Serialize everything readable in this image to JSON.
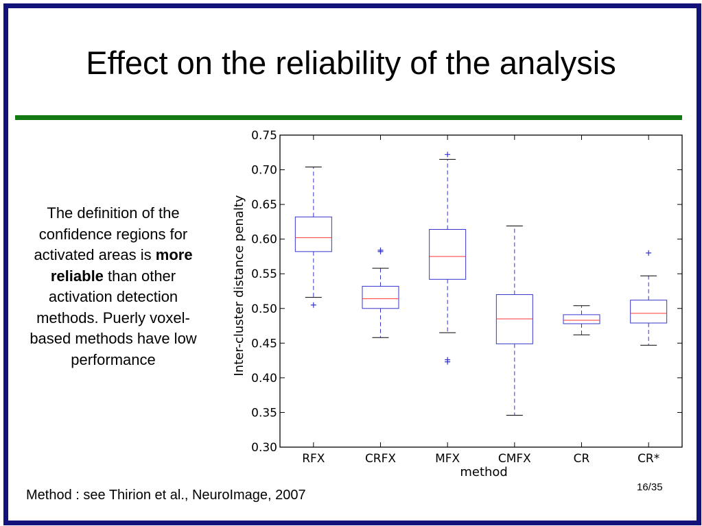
{
  "slide": {
    "title": "Effect on the reliability of the analysis",
    "body_line1": "The definition  of the confidence regions for activated areas is",
    "body_bold": "more reliable",
    "body_line2": "than other activation detection methods. Puerly voxel-based methods have low performance",
    "footnote": "Method : see Thirion et al., NeuroImage, 2007",
    "page_number": "16/35"
  },
  "colors": {
    "frame": "#12127a",
    "rule": "#137a13",
    "box": "#3333cc",
    "median": "#ff3333"
  },
  "chart_data": {
    "type": "box",
    "xlabel": "method",
    "ylabel": "Inter-cluster distance penalty",
    "ylim": [
      0.3,
      0.75
    ],
    "yticks": [
      "0.30",
      "0.35",
      "0.40",
      "0.45",
      "0.50",
      "0.55",
      "0.60",
      "0.65",
      "0.70",
      "0.75"
    ],
    "categories": [
      "RFX",
      "CRFX",
      "MFX",
      "CMFX",
      "CR",
      "CR*"
    ],
    "boxes": [
      {
        "whisker_low": 0.516,
        "q1": 0.582,
        "median": 0.602,
        "q3": 0.632,
        "whisker_high": 0.704,
        "outliers": [
          0.505
        ]
      },
      {
        "whisker_low": 0.458,
        "q1": 0.5,
        "median": 0.514,
        "q3": 0.532,
        "whisker_high": 0.558,
        "outliers": [
          0.582,
          0.584
        ]
      },
      {
        "whisker_low": 0.465,
        "q1": 0.542,
        "median": 0.575,
        "q3": 0.614,
        "whisker_high": 0.715,
        "outliers": [
          0.722,
          0.423,
          0.426
        ]
      },
      {
        "whisker_low": 0.346,
        "q1": 0.449,
        "median": 0.485,
        "q3": 0.52,
        "whisker_high": 0.619,
        "outliers": []
      },
      {
        "whisker_low": 0.462,
        "q1": 0.478,
        "median": 0.483,
        "q3": 0.491,
        "whisker_high": 0.504,
        "outliers": []
      },
      {
        "whisker_low": 0.447,
        "q1": 0.479,
        "median": 0.493,
        "q3": 0.512,
        "whisker_high": 0.547,
        "outliers": [
          0.58
        ]
      }
    ],
    "grid": false,
    "legend": "none"
  }
}
